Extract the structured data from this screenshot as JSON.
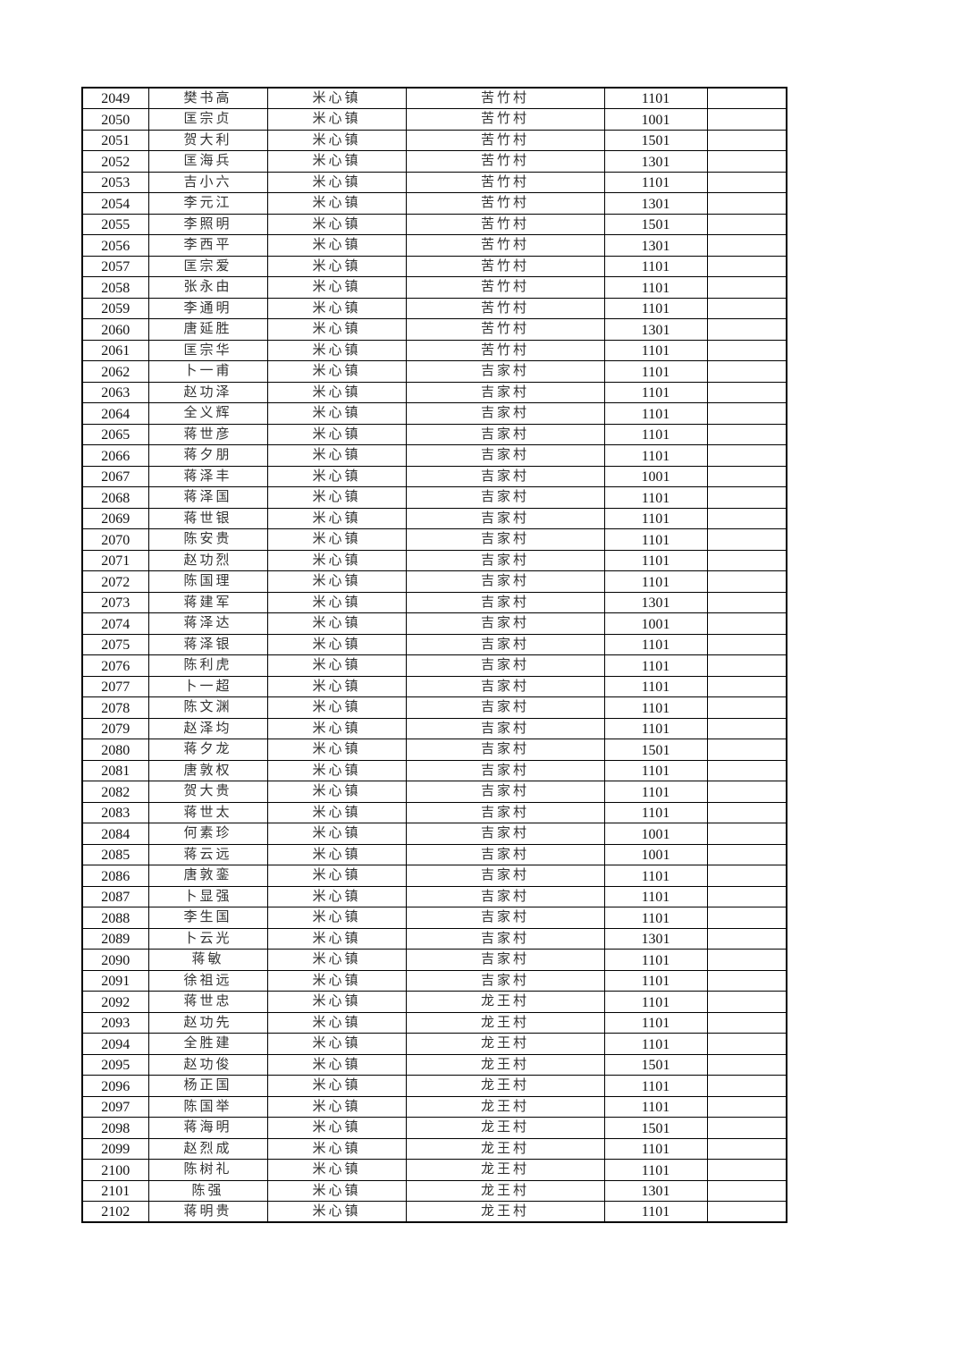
{
  "rows": [
    [
      "2049",
      "樊书高",
      "米心镇",
      "苦竹村",
      "1101",
      ""
    ],
    [
      "2050",
      "匡宗贞",
      "米心镇",
      "苦竹村",
      "1001",
      ""
    ],
    [
      "2051",
      "贺大利",
      "米心镇",
      "苦竹村",
      "1501",
      ""
    ],
    [
      "2052",
      "匡海兵",
      "米心镇",
      "苦竹村",
      "1301",
      ""
    ],
    [
      "2053",
      "吉小六",
      "米心镇",
      "苦竹村",
      "1101",
      ""
    ],
    [
      "2054",
      "李元江",
      "米心镇",
      "苦竹村",
      "1301",
      ""
    ],
    [
      "2055",
      "李照明",
      "米心镇",
      "苦竹村",
      "1501",
      ""
    ],
    [
      "2056",
      "李西平",
      "米心镇",
      "苦竹村",
      "1301",
      ""
    ],
    [
      "2057",
      "匡宗爱",
      "米心镇",
      "苦竹村",
      "1101",
      ""
    ],
    [
      "2058",
      "张永由",
      "米心镇",
      "苦竹村",
      "1101",
      ""
    ],
    [
      "2059",
      "李通明",
      "米心镇",
      "苦竹村",
      "1101",
      ""
    ],
    [
      "2060",
      "唐延胜",
      "米心镇",
      "苦竹村",
      "1301",
      ""
    ],
    [
      "2061",
      "匡宗华",
      "米心镇",
      "苦竹村",
      "1101",
      ""
    ],
    [
      "2062",
      "卜一甫",
      "米心镇",
      "吉家村",
      "1101",
      ""
    ],
    [
      "2063",
      "赵功泽",
      "米心镇",
      "吉家村",
      "1101",
      ""
    ],
    [
      "2064",
      "全义辉",
      "米心镇",
      "吉家村",
      "1101",
      ""
    ],
    [
      "2065",
      "蒋世彦",
      "米心镇",
      "吉家村",
      "1101",
      ""
    ],
    [
      "2066",
      "蒋夕朋",
      "米心镇",
      "吉家村",
      "1101",
      ""
    ],
    [
      "2067",
      "蒋泽丰",
      "米心镇",
      "吉家村",
      "1001",
      ""
    ],
    [
      "2068",
      "蒋泽国",
      "米心镇",
      "吉家村",
      "1101",
      ""
    ],
    [
      "2069",
      "蒋世银",
      "米心镇",
      "吉家村",
      "1101",
      ""
    ],
    [
      "2070",
      "陈安贵",
      "米心镇",
      "吉家村",
      "1101",
      ""
    ],
    [
      "2071",
      "赵功烈",
      "米心镇",
      "吉家村",
      "1101",
      ""
    ],
    [
      "2072",
      "陈国理",
      "米心镇",
      "吉家村",
      "1101",
      ""
    ],
    [
      "2073",
      "蒋建军",
      "米心镇",
      "吉家村",
      "1301",
      ""
    ],
    [
      "2074",
      "蒋泽达",
      "米心镇",
      "吉家村",
      "1001",
      ""
    ],
    [
      "2075",
      "蒋泽银",
      "米心镇",
      "吉家村",
      "1101",
      ""
    ],
    [
      "2076",
      "陈利虎",
      "米心镇",
      "吉家村",
      "1101",
      ""
    ],
    [
      "2077",
      "卜一超",
      "米心镇",
      "吉家村",
      "1101",
      ""
    ],
    [
      "2078",
      "陈文渊",
      "米心镇",
      "吉家村",
      "1101",
      ""
    ],
    [
      "2079",
      "赵泽均",
      "米心镇",
      "吉家村",
      "1101",
      ""
    ],
    [
      "2080",
      "蒋夕龙",
      "米心镇",
      "吉家村",
      "1501",
      ""
    ],
    [
      "2081",
      "唐敦权",
      "米心镇",
      "吉家村",
      "1101",
      ""
    ],
    [
      "2082",
      "贺大贵",
      "米心镇",
      "吉家村",
      "1101",
      ""
    ],
    [
      "2083",
      "蒋世太",
      "米心镇",
      "吉家村",
      "1101",
      ""
    ],
    [
      "2084",
      "何素珍",
      "米心镇",
      "吉家村",
      "1001",
      ""
    ],
    [
      "2085",
      "蒋云远",
      "米心镇",
      "吉家村",
      "1001",
      ""
    ],
    [
      "2086",
      "唐敦銮",
      "米心镇",
      "吉家村",
      "1101",
      ""
    ],
    [
      "2087",
      "卜显强",
      "米心镇",
      "吉家村",
      "1101",
      ""
    ],
    [
      "2088",
      "李生国",
      "米心镇",
      "吉家村",
      "1101",
      ""
    ],
    [
      "2089",
      "卜云光",
      "米心镇",
      "吉家村",
      "1301",
      ""
    ],
    [
      "2090",
      "蒋敏",
      "米心镇",
      "吉家村",
      "1101",
      ""
    ],
    [
      "2091",
      "徐祖远",
      "米心镇",
      "吉家村",
      "1101",
      ""
    ],
    [
      "2092",
      "蒋世忠",
      "米心镇",
      "龙王村",
      "1101",
      ""
    ],
    [
      "2093",
      "赵功先",
      "米心镇",
      "龙王村",
      "1101",
      ""
    ],
    [
      "2094",
      "全胜建",
      "米心镇",
      "龙王村",
      "1101",
      ""
    ],
    [
      "2095",
      "赵功俊",
      "米心镇",
      "龙王村",
      "1501",
      ""
    ],
    [
      "2096",
      "杨正国",
      "米心镇",
      "龙王村",
      "1101",
      ""
    ],
    [
      "2097",
      "陈国举",
      "米心镇",
      "龙王村",
      "1101",
      ""
    ],
    [
      "2098",
      "蒋海明",
      "米心镇",
      "龙王村",
      "1501",
      ""
    ],
    [
      "2099",
      "赵烈成",
      "米心镇",
      "龙王村",
      "1101",
      ""
    ],
    [
      "2100",
      "陈树礼",
      "米心镇",
      "龙王村",
      "1101",
      ""
    ],
    [
      "2101",
      "陈强",
      "米心镇",
      "龙王村",
      "1301",
      ""
    ],
    [
      "2102",
      "蒋明贵",
      "米心镇",
      "龙王村",
      "1101",
      ""
    ]
  ]
}
